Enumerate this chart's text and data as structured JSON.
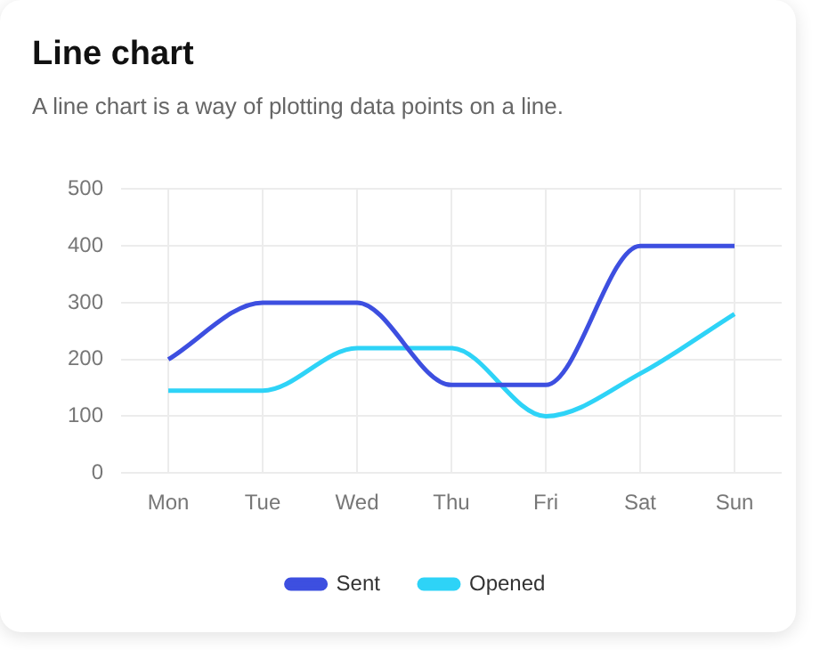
{
  "chart_data": {
    "type": "line",
    "title": "Line chart",
    "subtitle": "A line chart is a way of plotting data points on a line.",
    "categories": [
      "Mon",
      "Tue",
      "Wed",
      "Thu",
      "Fri",
      "Sat",
      "Sun"
    ],
    "series": [
      {
        "name": "Sent",
        "color": "#3d4fe0",
        "values": [
          200,
          300,
          300,
          155,
          155,
          400,
          400
        ]
      },
      {
        "name": "Opened",
        "color": "#2ed3f7",
        "values": [
          145,
          145,
          220,
          220,
          100,
          175,
          280
        ]
      }
    ],
    "ylim": [
      0,
      500
    ],
    "yticks": [
      0,
      100,
      200,
      300,
      400,
      500
    ],
    "grid": true,
    "legend": "bottom",
    "marker": "none",
    "line_style": "solid"
  }
}
